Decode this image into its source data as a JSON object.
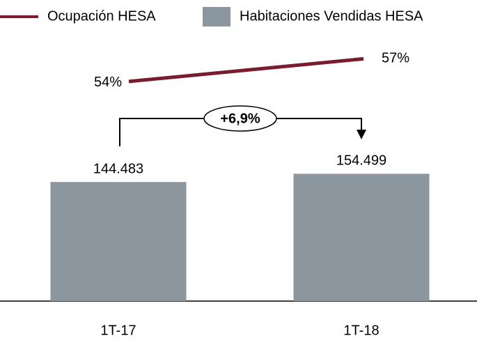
{
  "chart_data": {
    "type": "bar",
    "categories": [
      "1T-17",
      "1T-18"
    ],
    "series": [
      {
        "name": "Ocupación HESA",
        "type": "line",
        "axis": "y2",
        "color": "#7b1c2e",
        "values": [
          54,
          57
        ],
        "value_labels": [
          "54%",
          "57%"
        ]
      },
      {
        "name": "Habitaciones Vendidas HESA",
        "type": "bar",
        "color": "#8b969e",
        "values": [
          144483,
          154499
        ],
        "value_labels": [
          "144.483",
          "154.499"
        ]
      }
    ],
    "ylim": [
      0,
      340000
    ],
    "y2lim": [
      25,
      62
    ],
    "annotation": "+6,9%",
    "legend": "top"
  }
}
